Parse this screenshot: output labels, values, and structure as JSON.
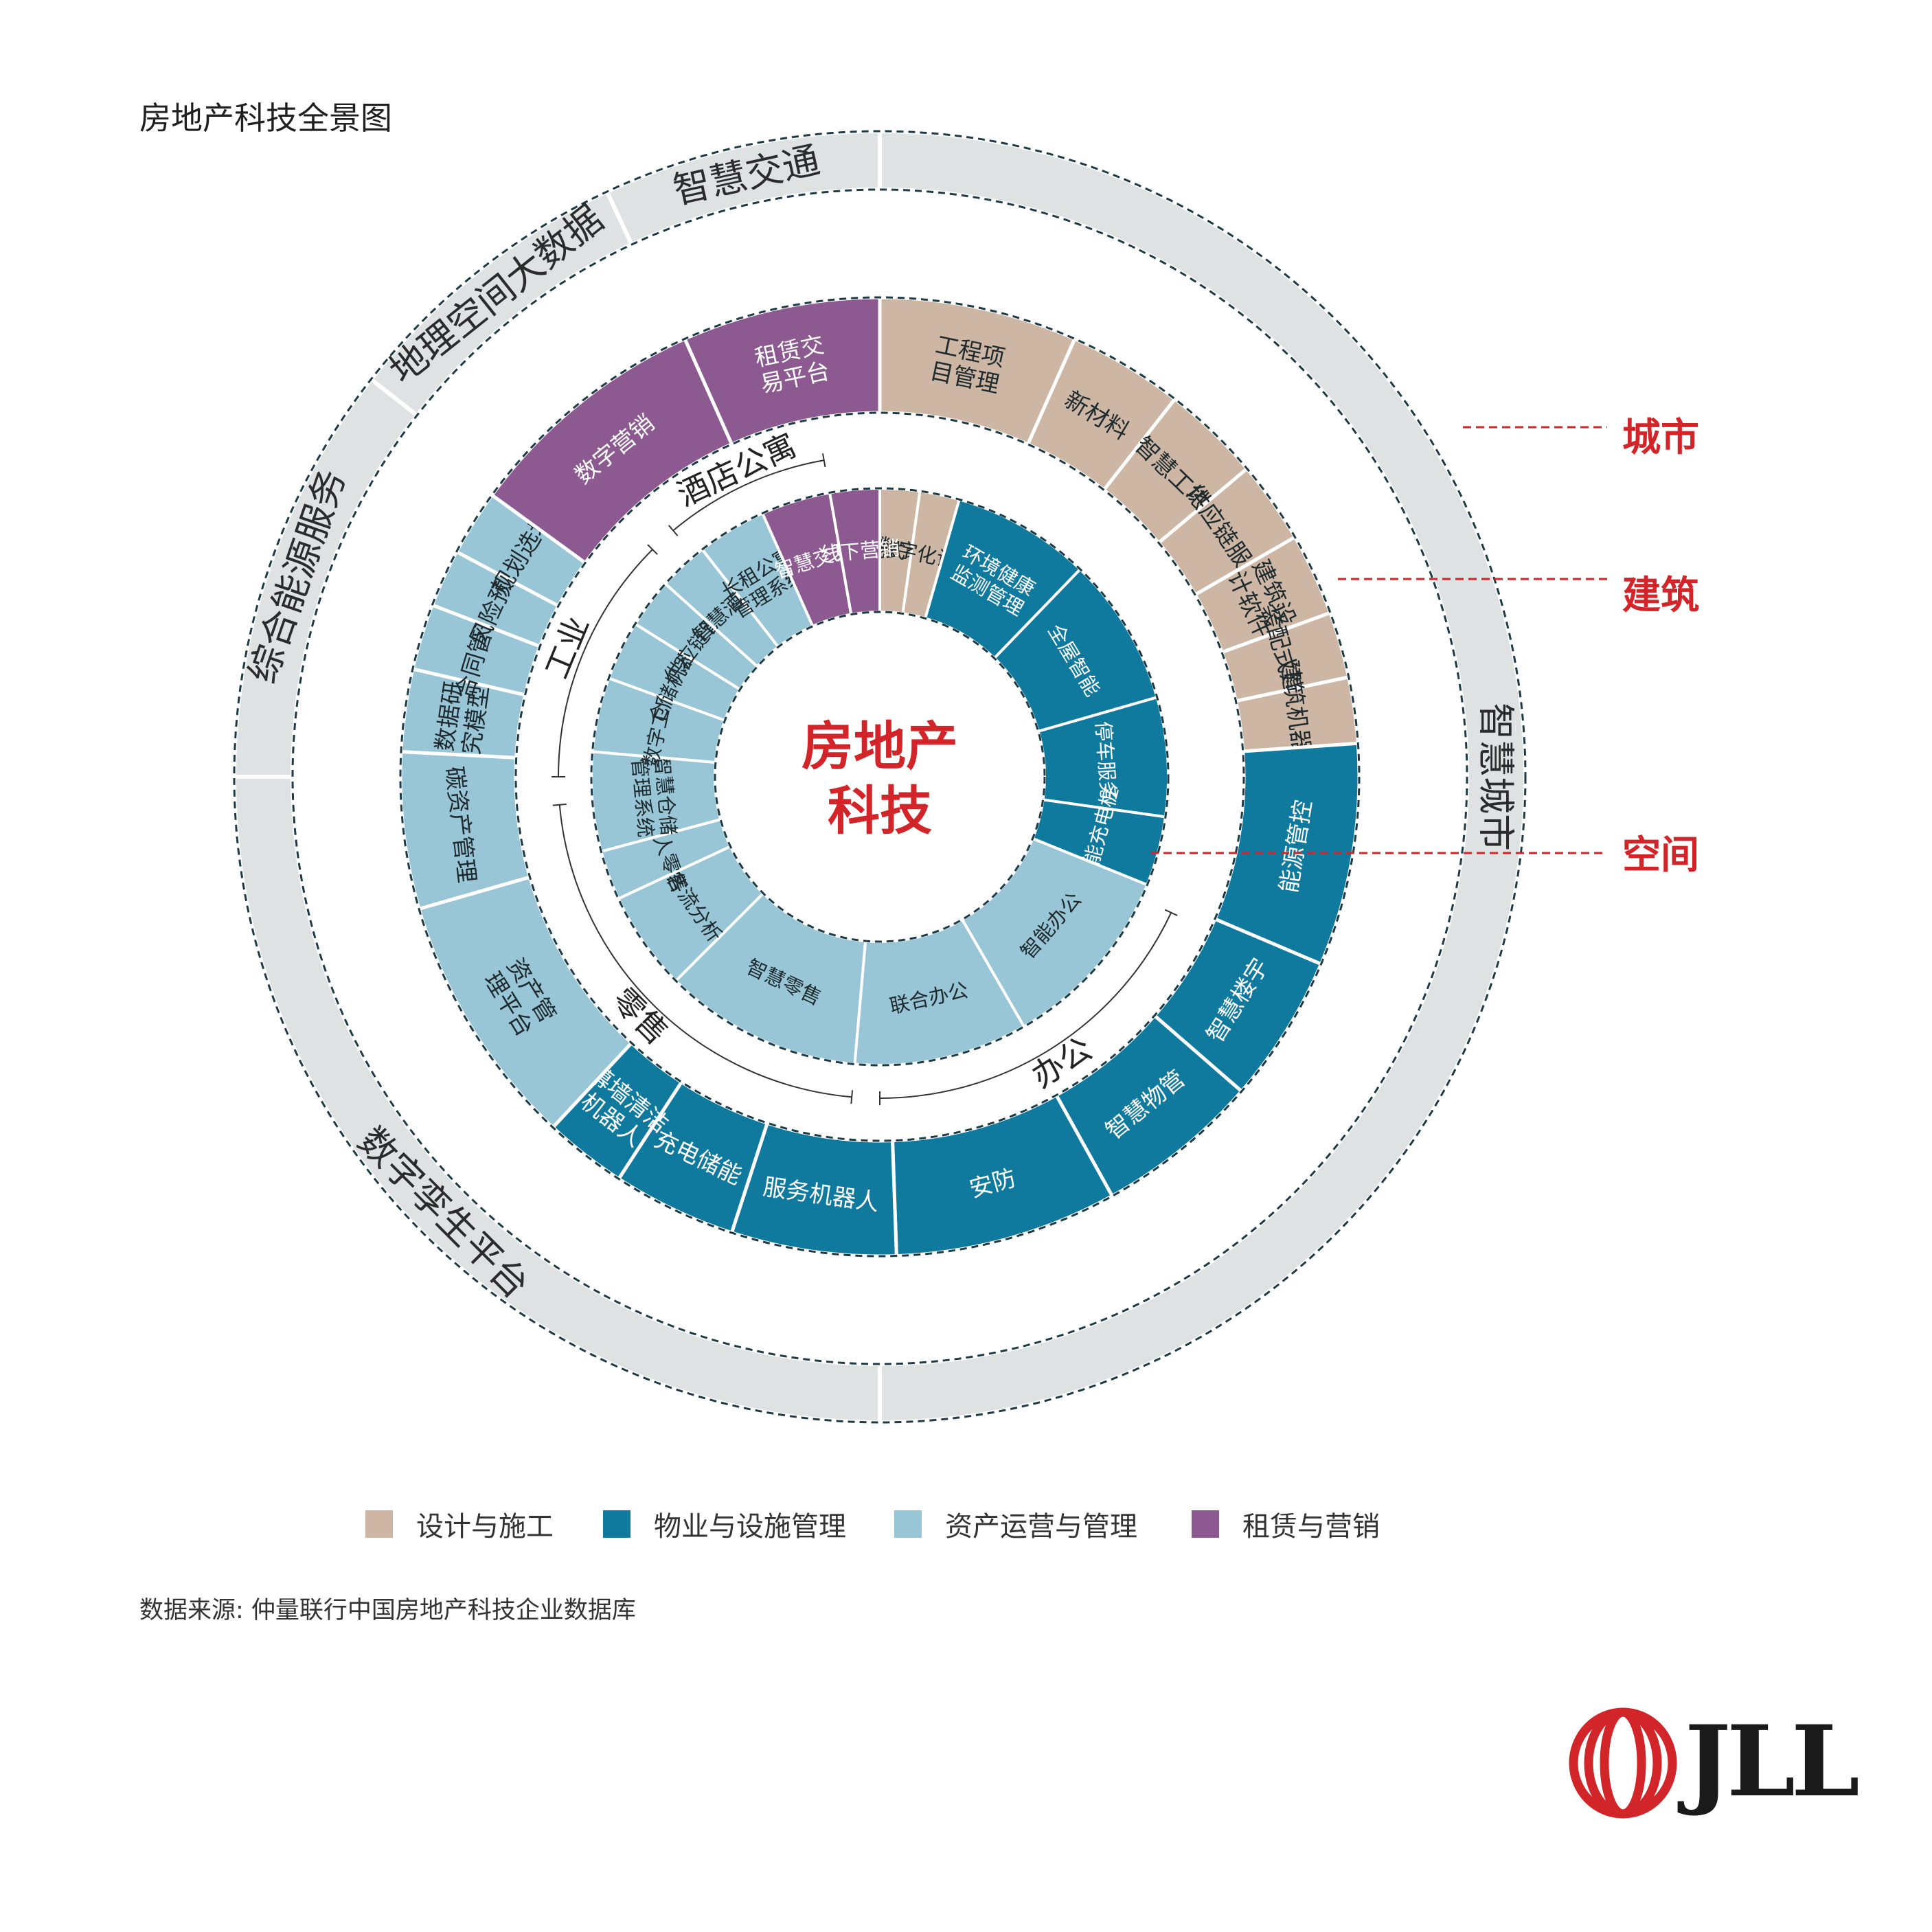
{
  "title": "房地产科技全景图",
  "center": {
    "line1": "房地产",
    "line2": "科技"
  },
  "colors": {
    "design": "#cdb6a4",
    "property": "#10799e",
    "asset": "#98c6d6",
    "leasing": "#8c5990",
    "outer": "#dfe2e3",
    "accent": "#d2252a",
    "ring_border": "#1d3b45"
  },
  "outer_ring": {
    "segments": [
      {
        "label": "智慧交通",
        "cat": "outer"
      },
      {
        "label": "智慧城市",
        "cat": "outer"
      },
      {
        "label": "数字孪生平台",
        "cat": "outer"
      },
      {
        "label": "综合能源服务",
        "cat": "outer"
      },
      {
        "label": "地理空间大数据",
        "cat": "outer"
      }
    ]
  },
  "middle_ring": {
    "segments": [
      {
        "label": "工程项目管理",
        "cat": "design"
      },
      {
        "label": "新材料",
        "cat": "design"
      },
      {
        "label": "智慧工地",
        "cat": "design"
      },
      {
        "label": "供应链服务",
        "cat": "design"
      },
      {
        "label": "建筑设计软件",
        "cat": "design"
      },
      {
        "label": "装配式建造",
        "cat": "design"
      },
      {
        "label": "建筑机器人",
        "cat": "design"
      },
      {
        "label": "能源管控",
        "cat": "property"
      },
      {
        "label": "智慧楼宇",
        "cat": "property"
      },
      {
        "label": "智慧物管",
        "cat": "property"
      },
      {
        "label": "安防",
        "cat": "property"
      },
      {
        "label": "服务机器人",
        "cat": "property"
      },
      {
        "label": "充电储能",
        "cat": "property"
      },
      {
        "label": "幕墙清洁机器人",
        "cat": "property"
      },
      {
        "label": "资产管理平台",
        "cat": "asset"
      },
      {
        "label": "碳资产管理",
        "cat": "asset"
      },
      {
        "label": "数据研究模型",
        "cat": "asset"
      },
      {
        "label": "合同管理",
        "cat": "asset"
      },
      {
        "label": "风险预警",
        "cat": "asset"
      },
      {
        "label": "规划选址",
        "cat": "asset"
      },
      {
        "label": "数字营销",
        "cat": "leasing"
      },
      {
        "label": "租赁交易平台",
        "cat": "leasing"
      }
    ]
  },
  "inner_ring": {
    "segments": [
      {
        "label": "装配式装修",
        "cat": "design"
      },
      {
        "label": "数字化设计",
        "cat": "design"
      },
      {
        "label": "环境健康监测管理",
        "cat": "property"
      },
      {
        "label": "全屋智能",
        "cat": "property"
      },
      {
        "label": "停车服务",
        "cat": "property"
      },
      {
        "label": "智能充电桩",
        "cat": "property"
      },
      {
        "label": "智能办公",
        "cat": "asset"
      },
      {
        "label": "联合办公",
        "cat": "asset"
      },
      {
        "label": "智慧零售",
        "cat": "asset"
      },
      {
        "label": "客流分析",
        "cat": "asset"
      },
      {
        "label": "无人零售",
        "cat": "asset"
      },
      {
        "label": "智慧仓储管理系统",
        "cat": "asset"
      },
      {
        "label": "数字工厂",
        "cat": "asset"
      },
      {
        "label": "仓储机器人",
        "cat": "asset"
      },
      {
        "label": "供应链管理",
        "cat": "asset"
      },
      {
        "label": "智慧酒店",
        "cat": "asset"
      },
      {
        "label": "长租公寓管理系统",
        "cat": "asset"
      },
      {
        "label": "智慧交互",
        "cat": "leasing"
      },
      {
        "label": "线下营销",
        "cat": "leasing"
      }
    ]
  },
  "sectors": [
    "酒店公寓",
    "工业",
    "零售",
    "办公"
  ],
  "side_labels": [
    "城市",
    "建筑",
    "空间"
  ],
  "legend": [
    {
      "label": "设计与施工",
      "cat": "design"
    },
    {
      "label": "物业与设施管理",
      "cat": "property"
    },
    {
      "label": "资产运营与管理",
      "cat": "asset"
    },
    {
      "label": "租赁与营销",
      "cat": "leasing"
    }
  ],
  "source": "数据来源: 仲量联行中国房地产科技企业数据库",
  "logo": {
    "text": "JLL"
  }
}
